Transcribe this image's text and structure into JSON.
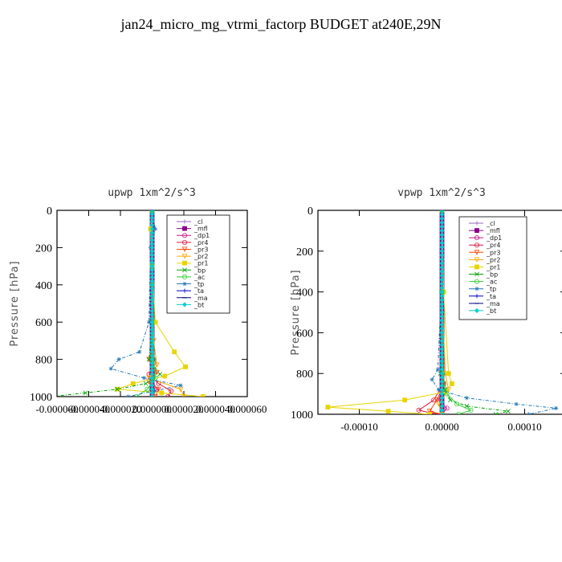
{
  "title": "jan24_micro_mg_vtrmi_factorp  BUDGET at240E,29N",
  "chart_data": [
    {
      "type": "line",
      "title": "upwp   1xm^2/s^3",
      "ylabel": "Pressure [hPa]",
      "xlim": [
        -6e-05,
        6e-05
      ],
      "ylim": [
        1000,
        0
      ],
      "xticks": [
        -6e-05,
        -4e-05,
        -2e-05,
        0.0,
        2e-05,
        4e-05,
        6e-05
      ],
      "xtick_labels": [
        "-0.000060",
        "-0.000040",
        "-0.000020",
        "0.000000",
        "0.000020",
        "0.000040",
        "0.000060"
      ],
      "yticks": [
        0,
        200,
        400,
        600,
        800,
        1000
      ],
      "ytick_labels": [
        "0",
        "200",
        "400",
        "600",
        "800",
        "1000"
      ],
      "legend": "top-right",
      "series": [
        {
          "name": "_cl",
          "color": "#9467bd",
          "marker": "plus",
          "x": [
            0,
            0,
            0,
            0,
            0,
            0,
            0
          ],
          "y": [
            0,
            200,
            400,
            600,
            800,
            900,
            1000
          ]
        },
        {
          "name": "_mfl",
          "color": "#8b008b",
          "marker": "square",
          "x": [
            0,
            0,
            0,
            0,
            0,
            0,
            0
          ],
          "y": [
            0,
            200,
            400,
            600,
            800,
            900,
            1000
          ]
        },
        {
          "name": "_dp1",
          "color": "#c71585",
          "marker": "circle",
          "x": [
            0,
            0,
            0,
            0,
            5e-07,
            -1e-06,
            3e-06,
            0
          ],
          "y": [
            0,
            200,
            400,
            600,
            800,
            900,
            960,
            1000
          ]
        },
        {
          "name": "_pr4",
          "color": "#dc143c",
          "marker": "circle",
          "x": [
            0,
            0,
            0,
            1e-06,
            -2e-06,
            4e-06,
            1.2e-05,
            1e-05
          ],
          "y": [
            0,
            400,
            700,
            820,
            880,
            930,
            970,
            1000
          ]
        },
        {
          "name": "_pr3",
          "color": "#ff4500",
          "marker": "tri",
          "x": [
            0,
            0,
            1e-06,
            -2e-06,
            3e-06,
            -2e-06,
            4e-06,
            2e-06
          ],
          "y": [
            0,
            400,
            700,
            800,
            870,
            920,
            960,
            1000
          ]
        },
        {
          "name": "_pr2",
          "color": "#ffa500",
          "marker": "tri",
          "x": [
            0,
            0,
            1e-06,
            3e-06,
            -2e-06,
            1.8e-05,
            2e-05
          ],
          "y": [
            0,
            300,
            700,
            830,
            900,
            960,
            1000
          ]
        },
        {
          "name": "_pr1",
          "color": "#e8d400",
          "marker": "square",
          "x": [
            0,
            -1e-06,
            0,
            2e-06,
            1.4e-05,
            2.1e-05,
            8e-06,
            -1.2e-05,
            -2.2e-05,
            6e-06,
            3.2e-05
          ],
          "y": [
            0,
            100,
            300,
            600,
            760,
            840,
            890,
            930,
            960,
            980,
            1000
          ]
        },
        {
          "name": "_bp",
          "color": "#00a000",
          "marker": "cross",
          "x": [
            0,
            0,
            0,
            -2e-06,
            5e-06,
            -4e-06,
            -2.2e-05,
            -4.2e-05,
            -6.4e-05
          ],
          "y": [
            0,
            300,
            600,
            800,
            880,
            930,
            960,
            980,
            1000
          ]
        },
        {
          "name": "_ac",
          "color": "#32cd32",
          "marker": "circle",
          "x": [
            0,
            0,
            1e-06,
            2e-06,
            -3e-06,
            -1e-05
          ],
          "y": [
            0,
            400,
            800,
            900,
            960,
            1000
          ]
        },
        {
          "name": "_tp",
          "color": "#1f77b4",
          "marker": "star",
          "x": [
            0,
            2e-06,
            -1e-06,
            -2e-06,
            -8e-06,
            -2.1e-05,
            -2.6e-05,
            -5e-06,
            1.8e-05,
            1e-06,
            -1.5e-05
          ],
          "y": [
            0,
            100,
            200,
            600,
            760,
            800,
            850,
            900,
            940,
            970,
            1000
          ]
        },
        {
          "name": "_ta",
          "color": "#0000cd",
          "marker": "plus",
          "x": [
            0,
            0,
            0,
            0,
            0
          ],
          "y": [
            0,
            300,
            600,
            900,
            1000
          ]
        },
        {
          "name": "_ma",
          "color": "#000080",
          "marker": "dash",
          "x": [
            0,
            0,
            0,
            0,
            0
          ],
          "y": [
            0,
            300,
            600,
            900,
            1000
          ]
        },
        {
          "name": "_bt",
          "color": "#00ced1",
          "marker": "diamond",
          "x": [
            0,
            0,
            0,
            0,
            0
          ],
          "y": [
            0,
            300,
            600,
            900,
            1000
          ]
        }
      ]
    },
    {
      "type": "line",
      "title": "vpwp   1xm^2/s^3",
      "ylabel": "Pressure [hPa]",
      "xlim": [
        -0.00015,
        0.00015
      ],
      "ylim": [
        1000,
        0
      ],
      "xticks": [
        -0.0001,
        0.0,
        0.0001
      ],
      "xtick_labels": [
        "-0.00010",
        "0.00000",
        "0.00010"
      ],
      "yticks": [
        0,
        200,
        400,
        600,
        800,
        1000
      ],
      "ytick_labels": [
        "0",
        "200",
        "400",
        "600",
        "800",
        "1000"
      ],
      "legend": "top-right",
      "series": [
        {
          "name": "_cl",
          "color": "#9467bd",
          "marker": "plus",
          "x": [
            0,
            0,
            0,
            0,
            0,
            0,
            0
          ],
          "y": [
            0,
            200,
            400,
            600,
            800,
            900,
            1000
          ]
        },
        {
          "name": "_mfl",
          "color": "#8b008b",
          "marker": "square",
          "x": [
            0,
            0,
            0,
            0,
            0,
            0,
            0
          ],
          "y": [
            0,
            200,
            400,
            600,
            800,
            900,
            1000
          ]
        },
        {
          "name": "_dp1",
          "color": "#c71585",
          "marker": "circle",
          "x": [
            0,
            0,
            0,
            2e-06,
            -4e-06,
            6e-06,
            0
          ],
          "y": [
            0,
            300,
            600,
            850,
            930,
            970,
            1000
          ]
        },
        {
          "name": "_pr4",
          "color": "#dc143c",
          "marker": "circle",
          "x": [
            0,
            0,
            2e-06,
            -1e-05,
            -2.8e-05,
            -1.2e-05,
            0
          ],
          "y": [
            0,
            400,
            850,
            930,
            980,
            995,
            1000
          ]
        },
        {
          "name": "_pr3",
          "color": "#ff4500",
          "marker": "tri",
          "x": [
            0,
            0,
            2e-06,
            -6e-06,
            -1.5e-05,
            0
          ],
          "y": [
            0,
            400,
            850,
            930,
            985,
            1000
          ]
        },
        {
          "name": "_pr2",
          "color": "#ffa500",
          "marker": "tri",
          "x": [
            0,
            0,
            4e-06,
            8e-06,
            -4e-06,
            0
          ],
          "y": [
            0,
            400,
            800,
            880,
            950,
            1000
          ]
        },
        {
          "name": "_pr1",
          "color": "#e8d400",
          "marker": "square",
          "x": [
            0,
            2e-06,
            8e-06,
            1.2e-05,
            4e-06,
            -4.5e-05,
            -0.000138,
            -6.5e-05,
            -1.5e-05
          ],
          "y": [
            0,
            400,
            800,
            850,
            890,
            930,
            965,
            985,
            1000
          ]
        },
        {
          "name": "_bp",
          "color": "#00a000",
          "marker": "cross",
          "x": [
            0,
            0,
            -2e-06,
            4e-06,
            1e-05,
            3e-05,
            8e-05,
            6.5e-05
          ],
          "y": [
            0,
            400,
            800,
            880,
            930,
            960,
            985,
            1000
          ]
        },
        {
          "name": "_ac",
          "color": "#32cd32",
          "marker": "circle",
          "x": [
            0,
            0,
            1e-06,
            6e-06,
            1.8e-05,
            3.5e-05,
            2e-05
          ],
          "y": [
            0,
            400,
            800,
            900,
            950,
            980,
            1000
          ]
        },
        {
          "name": "_tp",
          "color": "#1f77b4",
          "marker": "star",
          "x": [
            0,
            -1e-06,
            -5e-06,
            -1.2e-05,
            -4e-06,
            3e-05,
            9e-05,
            0.000138,
            0.000105
          ],
          "y": [
            0,
            400,
            780,
            830,
            880,
            920,
            950,
            970,
            1000
          ]
        },
        {
          "name": "_ta",
          "color": "#0000cd",
          "marker": "plus",
          "x": [
            0,
            0,
            0,
            0,
            0
          ],
          "y": [
            0,
            300,
            600,
            900,
            1000
          ]
        },
        {
          "name": "_ma",
          "color": "#000080",
          "marker": "dash",
          "x": [
            0,
            0,
            0,
            0,
            0
          ],
          "y": [
            0,
            300,
            600,
            900,
            1000
          ]
        },
        {
          "name": "_bt",
          "color": "#00ced1",
          "marker": "diamond",
          "x": [
            0,
            0,
            0,
            0,
            0
          ],
          "y": [
            0,
            300,
            600,
            900,
            1000
          ]
        }
      ]
    }
  ]
}
